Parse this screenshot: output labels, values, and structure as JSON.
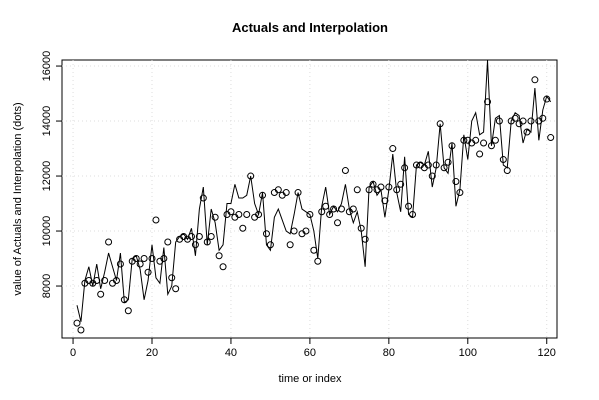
{
  "chart_data": {
    "type": "line",
    "title": "Actuals and Interpolation",
    "xlabel": "time or index",
    "ylabel": "value of Actuals and Interpolation (dots)",
    "x": [
      1,
      2,
      3,
      4,
      5,
      6,
      7,
      8,
      9,
      10,
      11,
      12,
      13,
      14,
      15,
      16,
      17,
      18,
      19,
      20,
      21,
      22,
      23,
      24,
      25,
      26,
      27,
      28,
      29,
      30,
      31,
      32,
      33,
      34,
      35,
      36,
      37,
      38,
      39,
      40,
      41,
      42,
      43,
      44,
      45,
      46,
      47,
      48,
      49,
      50,
      51,
      52,
      53,
      54,
      55,
      56,
      57,
      58,
      59,
      60,
      61,
      62,
      63,
      64,
      65,
      66,
      67,
      68,
      69,
      70,
      71,
      72,
      73,
      74,
      75,
      76,
      77,
      78,
      79,
      80,
      81,
      82,
      83,
      84,
      85,
      86,
      87,
      88,
      89,
      90,
      91,
      92,
      93,
      94,
      95,
      96,
      97,
      98,
      99,
      100,
      101,
      102,
      103,
      104,
      105,
      106,
      107,
      108,
      109,
      110,
      111,
      112,
      113,
      114,
      115,
      116,
      117,
      118,
      119,
      120,
      121
    ],
    "series": [
      {
        "kind": "line",
        "color": "#000000",
        "values": [
          7300,
          6700,
          8200,
          8700,
          8000,
          8800,
          7900,
          8500,
          9200,
          8700,
          8200,
          9200,
          7400,
          7500,
          9000,
          9100,
          8600,
          7500,
          8200,
          9500,
          8300,
          8100,
          9400,
          7700,
          8000,
          9600,
          9800,
          9900,
          9700,
          10100,
          9100,
          10800,
          11600,
          9500,
          10800,
          10300,
          9300,
          9500,
          11000,
          11000,
          11700,
          11200,
          11200,
          11300,
          12000,
          11000,
          10600,
          11400,
          9500,
          9300,
          10500,
          10800,
          10400,
          10000,
          9900,
          10600,
          11400,
          10800,
          10700,
          10600,
          10000,
          9000,
          10900,
          11600,
          10600,
          10900,
          10700,
          11000,
          11700,
          10800,
          10300,
          10700,
          10000,
          8700,
          11600,
          11800,
          11300,
          11500,
          10500,
          11500,
          12800,
          11400,
          10700,
          12700,
          10600,
          10500,
          12400,
          12500,
          12400,
          12900,
          11600,
          12300,
          13900,
          12300,
          12100,
          13200,
          10900,
          11500,
          13500,
          12600,
          14000,
          14300,
          13500,
          13600,
          16200,
          13100,
          14100,
          14200,
          12400,
          12300,
          14000,
          14300,
          14200,
          13200,
          13700,
          13600,
          15200,
          13300,
          14400,
          14900,
          14700
        ]
      },
      {
        "kind": "points",
        "color": "#000000",
        "values": [
          6650,
          6400,
          8100,
          8200,
          8100,
          8200,
          7700,
          8200,
          9600,
          8100,
          8200,
          8800,
          7500,
          7100,
          8900,
          9000,
          8800,
          9000,
          8500,
          9000,
          10400,
          8900,
          9000,
          9600,
          8300,
          7900,
          9700,
          9800,
          9700,
          9800,
          9500,
          9800,
          11200,
          9600,
          9800,
          10500,
          9100,
          8700,
          10600,
          10700,
          10500,
          10600,
          10100,
          10600,
          12000,
          10500,
          10600,
          11300,
          9900,
          9500,
          11400,
          11500,
          11300,
          11400,
          9500,
          10000,
          11400,
          9900,
          10000,
          10600,
          9300,
          8900,
          10700,
          10900,
          10600,
          10800,
          10300,
          10800,
          12200,
          10700,
          10800,
          11500,
          10100,
          9700,
          11500,
          11700,
          11500,
          11600,
          11100,
          11600,
          13000,
          11500,
          11700,
          12300,
          10900,
          10600,
          12400,
          12400,
          12300,
          12400,
          12000,
          12400,
          13900,
          12300,
          12500,
          13100,
          11800,
          11400,
          13300,
          13300,
          13200,
          13300,
          12800,
          13200,
          14700,
          13100,
          13300,
          14000,
          12600,
          12200,
          14000,
          14100,
          13900,
          14000,
          13600,
          14000,
          15500,
          14000,
          14100,
          14800,
          13400
        ]
      }
    ],
    "xlim": [
      -2.8,
      122.6
    ],
    "ylim": [
      6110,
      16220
    ],
    "xticks": [
      0,
      20,
      40,
      60,
      80,
      100,
      120
    ],
    "yticks": [
      8000,
      10000,
      12000,
      14000,
      16000
    ],
    "grid": true
  }
}
